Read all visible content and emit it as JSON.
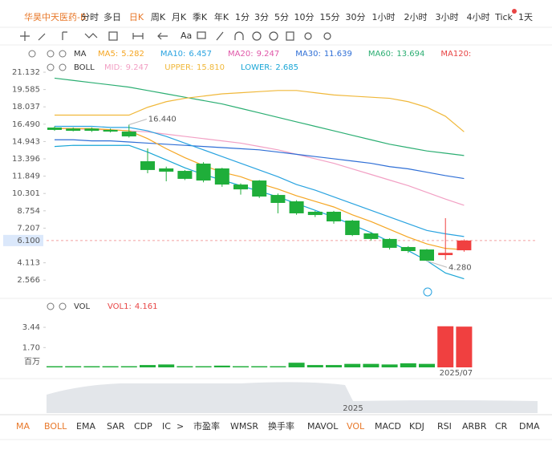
{
  "header": {
    "name": "华昊中天医药-B",
    "periods": [
      "分时",
      "多日",
      "日K",
      "周K",
      "月K",
      "季K",
      "年K",
      "1分",
      "3分",
      "5分",
      "10分",
      "15分",
      "30分",
      "1小时",
      "2小时",
      "3小时",
      "4小时",
      "Tick",
      "1天"
    ],
    "active_period": 2
  },
  "tools": {
    "text_tool": "Aa"
  },
  "ma_legend": {
    "label": "MA",
    "items": [
      {
        "label": "MA5:",
        "value": "5.282",
        "color": "#f5a623"
      },
      {
        "label": "MA10:",
        "value": "6.457",
        "color": "#29a3e0"
      },
      {
        "label": "MA20:",
        "value": "9.247",
        "color": "#e057a8"
      },
      {
        "label": "MA30:",
        "value": "11.639",
        "color": "#2f6fd6"
      },
      {
        "label": "MA60:",
        "value": "13.694",
        "color": "#2bae72"
      },
      {
        "label": "MA120:",
        "value": "",
        "color": "#e84545"
      }
    ]
  },
  "boll_legend": {
    "label": "BOLL",
    "items": [
      {
        "label": "MID:",
        "value": "9.247",
        "color": "#f2a0c4"
      },
      {
        "label": "UPPER:",
        "value": "15.810",
        "color": "#f0b83a"
      },
      {
        "label": "LOWER:",
        "value": "2.685",
        "color": "#1aa6d6"
      }
    ]
  },
  "price_axis": {
    "ylim": [
      1.077,
      21.85
    ],
    "ticks": [
      {
        "value": 21.132,
        "label": "21.132"
      },
      {
        "value": 19.585,
        "label": "19.585"
      },
      {
        "value": 18.037,
        "label": "18.037"
      },
      {
        "value": 16.49,
        "label": "16.490"
      },
      {
        "value": 14.943,
        "label": "14.943"
      },
      {
        "value": 13.396,
        "label": "13.396"
      },
      {
        "value": 11.849,
        "label": "11.849"
      },
      {
        "value": 10.301,
        "label": "10.301"
      },
      {
        "value": 8.754,
        "label": "8.754"
      },
      {
        "value": 7.207,
        "label": "7.207"
      },
      {
        "value": 4.113,
        "label": "4.113"
      },
      {
        "value": 2.566,
        "label": "2.566"
      }
    ],
    "current": {
      "value": 6.1,
      "label": "6.100"
    }
  },
  "candles": [
    {
      "o": 16.19,
      "h": 16.3,
      "l": 15.9,
      "c": 15.98
    },
    {
      "o": 16.1,
      "h": 16.2,
      "l": 15.85,
      "c": 15.9
    },
    {
      "o": 16.1,
      "h": 16.2,
      "l": 15.8,
      "c": 15.9
    },
    {
      "o": 15.98,
      "h": 16.1,
      "l": 15.75,
      "c": 15.83
    },
    {
      "o": 15.83,
      "h": 16.44,
      "l": 15.3,
      "c": 15.4
    },
    {
      "o": 13.18,
      "h": 14.33,
      "l": 12.11,
      "c": 12.4
    },
    {
      "o": 12.54,
      "h": 12.7,
      "l": 11.39,
      "c": 12.25
    },
    {
      "o": 12.32,
      "h": 12.4,
      "l": 11.5,
      "c": 11.61
    },
    {
      "o": 12.97,
      "h": 13.1,
      "l": 11.3,
      "c": 11.46
    },
    {
      "o": 12.54,
      "h": 12.6,
      "l": 10.9,
      "c": 11.1
    },
    {
      "o": 11.1,
      "h": 11.2,
      "l": 10.2,
      "c": 10.67
    },
    {
      "o": 11.46,
      "h": 11.5,
      "l": 9.9,
      "c": 10.03
    },
    {
      "o": 10.17,
      "h": 10.3,
      "l": 8.53,
      "c": 9.46
    },
    {
      "o": 9.6,
      "h": 9.7,
      "l": 8.4,
      "c": 8.53
    },
    {
      "o": 8.67,
      "h": 8.75,
      "l": 8.2,
      "c": 8.38
    },
    {
      "o": 8.67,
      "h": 8.75,
      "l": 7.6,
      "c": 7.81
    },
    {
      "o": 7.88,
      "h": 7.95,
      "l": 6.5,
      "c": 6.59
    },
    {
      "o": 6.74,
      "h": 6.85,
      "l": 6.1,
      "c": 6.24
    },
    {
      "o": 6.24,
      "h": 6.3,
      "l": 5.3,
      "c": 5.45
    },
    {
      "o": 5.52,
      "h": 5.6,
      "l": 5.0,
      "c": 5.16
    },
    {
      "o": 5.3,
      "h": 5.35,
      "l": 4.28,
      "c": 4.3
    },
    {
      "o": 4.8,
      "h": 8.1,
      "l": 4.37,
      "c": 5.0
    },
    {
      "o": 5.23,
      "h": 6.2,
      "l": 5.1,
      "c": 6.1
    }
  ],
  "lines": [
    {
      "name": "MA60",
      "color": "#2bae72",
      "values": [
        20.6,
        20.4,
        20.2,
        20.0,
        19.8,
        19.5,
        19.2,
        18.9,
        18.6,
        18.3,
        17.9,
        17.5,
        17.1,
        16.7,
        16.3,
        15.9,
        15.5,
        15.1,
        14.7,
        14.4,
        14.1,
        13.9,
        13.694
      ]
    },
    {
      "name": "UPPER",
      "color": "#f0b83a",
      "values": [
        17.3,
        17.3,
        17.3,
        17.3,
        17.3,
        18.0,
        18.5,
        18.8,
        19.0,
        19.2,
        19.3,
        19.4,
        19.5,
        19.5,
        19.3,
        19.1,
        19.0,
        18.9,
        18.8,
        18.5,
        18.0,
        17.2,
        15.81
      ]
    },
    {
      "name": "MID",
      "color": "#f2a0c4",
      "values": [
        16.1,
        16.1,
        16.0,
        16.0,
        15.9,
        15.8,
        15.6,
        15.4,
        15.2,
        15.0,
        14.8,
        14.5,
        14.2,
        13.8,
        13.4,
        13.0,
        12.5,
        12.0,
        11.5,
        11.0,
        10.4,
        9.8,
        9.247
      ]
    },
    {
      "name": "MA30",
      "color": "#2f6fd6",
      "values": [
        15.1,
        15.1,
        15.0,
        15.0,
        14.9,
        14.8,
        14.7,
        14.6,
        14.5,
        14.4,
        14.3,
        14.2,
        14.0,
        13.8,
        13.6,
        13.4,
        13.2,
        13.0,
        12.7,
        12.5,
        12.2,
        11.9,
        11.639
      ]
    },
    {
      "name": "LOWER",
      "color": "#1aa6d6",
      "values": [
        14.5,
        14.6,
        14.6,
        14.6,
        14.6,
        14.0,
        13.3,
        12.6,
        12.0,
        11.5,
        11.0,
        10.5,
        10.0,
        9.4,
        8.8,
        8.2,
        7.5,
        6.8,
        6.0,
        5.2,
        4.3,
        3.2,
        2.685
      ]
    },
    {
      "name": "MA10",
      "color": "#29a3e0",
      "values": [
        16.3,
        16.3,
        16.3,
        16.2,
        16.2,
        15.9,
        15.4,
        14.8,
        14.2,
        13.6,
        13.0,
        12.4,
        11.8,
        11.1,
        10.6,
        10.0,
        9.4,
        8.8,
        8.2,
        7.6,
        7.0,
        6.7,
        6.457
      ]
    },
    {
      "name": "MA5",
      "color": "#f5a623",
      "values": [
        16.1,
        16.1,
        16.1,
        16.0,
        15.9,
        15.2,
        14.3,
        13.5,
        12.8,
        12.2,
        11.8,
        11.2,
        10.7,
        10.1,
        9.6,
        9.1,
        8.4,
        7.8,
        7.1,
        6.4,
        5.8,
        5.4,
        5.282
      ]
    }
  ],
  "annotations": {
    "high": {
      "value": 16.44,
      "label": "16.440",
      "index": 4
    },
    "low": {
      "value": 4.28,
      "label": "4.280",
      "index": 20
    }
  },
  "volume": {
    "label": "VOL",
    "vol1_label": "VOL1:",
    "vol1_value": "4.161",
    "ylim": [
      0,
      4.34
    ],
    "ticks": [
      {
        "value": 3.44,
        "label": "3.44"
      },
      {
        "value": 1.7,
        "label": "1.70"
      }
    ],
    "unit": "百万",
    "values": [
      0.1,
      0.1,
      0.1,
      0.1,
      0.1,
      0.2,
      0.25,
      0.1,
      0.1,
      0.15,
      0.1,
      0.1,
      0.1,
      0.4,
      0.2,
      0.2,
      0.3,
      0.3,
      0.25,
      0.35,
      0.3,
      3.53,
      3.5
    ],
    "date_label": "2025/07"
  },
  "navigator": {
    "year": "2025"
  },
  "tabs": [
    {
      "label": "MA",
      "active": true
    },
    {
      "label": "BOLL",
      "active": true
    },
    {
      "label": "EMA",
      "active": false
    },
    {
      "label": "SAR",
      "active": false
    },
    {
      "label": "CDP",
      "active": false
    },
    {
      "label": "IC",
      "active": false
    },
    {
      "label": ">",
      "active": false
    },
    {
      "label": "市盈率",
      "active": false
    },
    {
      "label": "WMSR",
      "active": false
    },
    {
      "label": "换手率",
      "active": false
    },
    {
      "label": "MAVOL",
      "active": false
    },
    {
      "label": "VOL",
      "active": true
    },
    {
      "label": "MACD",
      "active": false
    },
    {
      "label": "KDJ",
      "active": false
    },
    {
      "label": "RSI",
      "active": false
    },
    {
      "label": "ARBR",
      "active": false
    },
    {
      "label": "CR",
      "active": false
    },
    {
      "label": "DMA",
      "active": false
    }
  ]
}
